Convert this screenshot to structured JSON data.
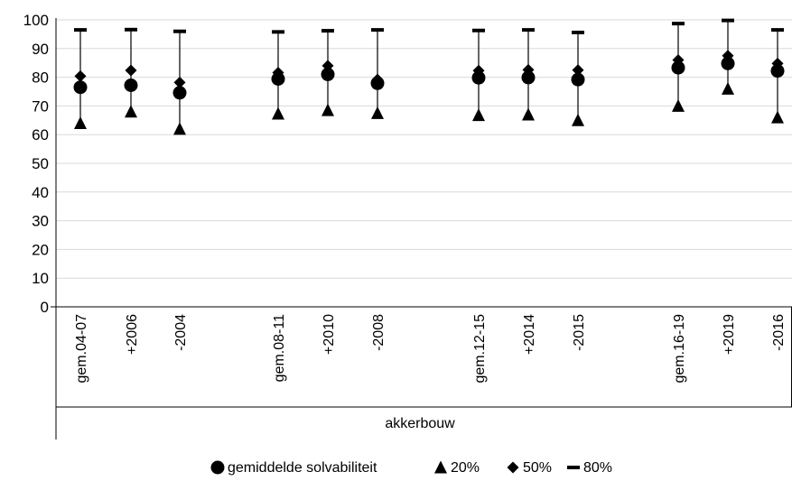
{
  "chart_data": {
    "type": "scatter",
    "title": "",
    "xlabel": "",
    "ylabel": "",
    "ylim": [
      0,
      100
    ],
    "yticks": [
      0,
      10,
      20,
      30,
      40,
      50,
      60,
      70,
      80,
      90,
      100
    ],
    "grid": "horizontal",
    "legend_position": "bottom",
    "group": "akkerbouw",
    "categories": [
      "gem.04-07",
      "+2006",
      "-2004",
      "gem.08-11",
      "+2010",
      "-2008",
      "gem.12-15",
      "+2014",
      "-2015",
      "gem.16-19",
      "+2019",
      "-2016"
    ],
    "series": [
      {
        "name": "gemiddelde solvabiliteit",
        "marker": "circle",
        "values": [
          76.5,
          77.2,
          74.6,
          79.4,
          81.0,
          77.9,
          79.8,
          79.9,
          79.2,
          83.3,
          84.8,
          82.2
        ]
      },
      {
        "name": "20%",
        "marker": "triangle",
        "values": [
          64.0,
          68.0,
          62.0,
          67.3,
          68.5,
          67.5,
          66.8,
          67.0,
          65.0,
          70.0,
          76.0,
          66.0
        ]
      },
      {
        "name": "50%",
        "marker": "diamond",
        "values": [
          80.4,
          82.4,
          78.2,
          81.6,
          84.0,
          79.2,
          82.3,
          82.6,
          82.5,
          86.0,
          87.5,
          84.8
        ]
      },
      {
        "name": "80%",
        "marker": "dash",
        "values": [
          96.5,
          96.6,
          96.0,
          95.8,
          96.2,
          96.5,
          96.3,
          96.5,
          95.6,
          98.7,
          99.8,
          96.5
        ]
      }
    ],
    "colors": {
      "marker": "#000000",
      "grid": "#d9d9d9",
      "axis": "#000000"
    }
  }
}
